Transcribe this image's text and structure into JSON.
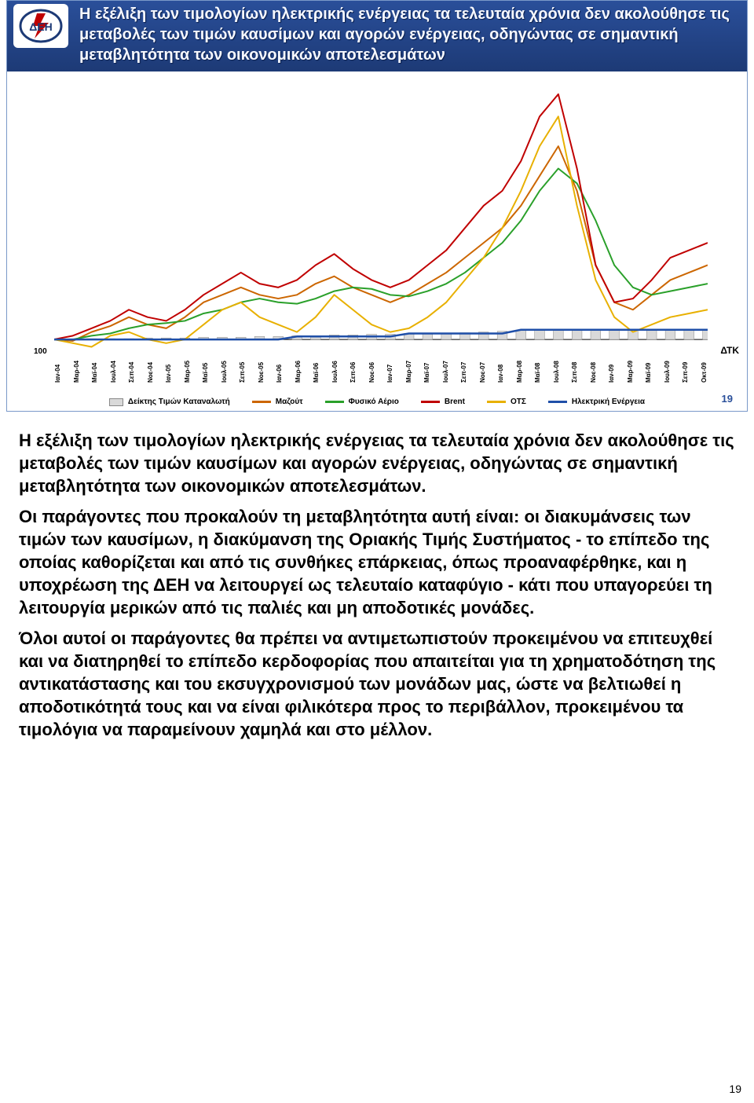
{
  "header": {
    "title": "Η εξέλιξη των τιμολογίων ηλεκτρικής ενέργειας τα τελευταία χρόνια δεν ακολούθησε τις μεταβολές των τιμών καυσίμων και αγορών ενέργειας, οδηγώντας σε σημαντική μεταβλητότητα των οικονομικών αποτελεσμάτων",
    "logo_text": "ΔΕΗ",
    "header_bg_top": "#2a4f9a",
    "header_bg_bottom": "#1d3a76",
    "title_color": "#f6f8ff",
    "title_fontsize": 20
  },
  "chart": {
    "type": "line",
    "background_color": "#ffffff",
    "y_baseline_label": "100",
    "y_label_right": "ΔΤΚ",
    "x_categories": [
      "Ιαν-04",
      "Μαρ-04",
      "Μαϊ-04",
      "Ιουλ-04",
      "Σεπ-04",
      "Νοε-04",
      "Ιαν-05",
      "Μαρ-05",
      "Μαϊ-05",
      "Ιουλ-05",
      "Σεπ-05",
      "Νοε-05",
      "Ιαν-06",
      "Μαρ-06",
      "Μαϊ-06",
      "Ιουλ-06",
      "Σεπ-06",
      "Νοε-06",
      "Ιαν-07",
      "Μαρ-07",
      "Μαϊ-07",
      "Ιουλ-07",
      "Σεπ-07",
      "Νοε-07",
      "Ιαν-08",
      "Μαρ-08",
      "Μαϊ-08",
      "Ιουλ-08",
      "Σεπ-08",
      "Νοε-08",
      "Ιαν-09",
      "Μαρ-09",
      "Μαϊ-09",
      "Ιουλ-09",
      "Σεπ-09",
      "Οκτ-09"
    ],
    "series": [
      {
        "name": "Δείκτης Τιμών Καταναλωτή",
        "kind": "bar",
        "color": "#d9d9d9",
        "border": "#888888",
        "values": [
          100,
          100,
          101,
          101,
          101,
          102,
          102,
          102,
          103,
          103,
          103,
          104,
          104,
          105,
          105,
          106,
          106,
          107,
          107,
          108,
          108,
          108,
          109,
          110,
          111,
          112,
          113,
          114,
          114,
          114,
          113,
          113,
          113,
          113,
          113,
          113
        ]
      },
      {
        "name": "Μαζούτ",
        "kind": "line",
        "color": "#cc6600",
        "width": 2,
        "values": [
          100,
          98,
          110,
          118,
          130,
          120,
          115,
          130,
          150,
          160,
          170,
          160,
          155,
          160,
          175,
          185,
          170,
          160,
          150,
          160,
          175,
          190,
          210,
          230,
          250,
          280,
          320,
          360,
          300,
          200,
          150,
          140,
          160,
          180,
          190,
          200
        ]
      },
      {
        "name": "Φυσικό Αέριο",
        "kind": "line",
        "color": "#2aa02a",
        "width": 2,
        "values": [
          100,
          100,
          105,
          108,
          115,
          120,
          122,
          125,
          135,
          140,
          150,
          155,
          150,
          148,
          155,
          165,
          170,
          168,
          160,
          158,
          165,
          175,
          190,
          210,
          230,
          260,
          300,
          330,
          310,
          260,
          200,
          170,
          160,
          165,
          170,
          175
        ]
      },
      {
        "name": "Brent",
        "kind": "line",
        "color": "#c00000",
        "width": 2,
        "values": [
          100,
          105,
          115,
          125,
          140,
          130,
          125,
          140,
          160,
          175,
          190,
          175,
          170,
          180,
          200,
          215,
          195,
          180,
          170,
          180,
          200,
          220,
          250,
          280,
          300,
          340,
          400,
          430,
          330,
          200,
          150,
          155,
          180,
          210,
          220,
          230
        ]
      },
      {
        "name": "ΟΤΣ",
        "kind": "line",
        "color": "#e8b000",
        "width": 2,
        "values": [
          100,
          95,
          90,
          105,
          110,
          100,
          95,
          100,
          120,
          140,
          150,
          130,
          120,
          110,
          130,
          160,
          140,
          120,
          110,
          115,
          130,
          150,
          180,
          210,
          250,
          300,
          360,
          400,
          280,
          180,
          130,
          110,
          120,
          130,
          135,
          140
        ]
      },
      {
        "name": "Ηλεκτρική Ενέργεια",
        "kind": "line",
        "color": "#1f4fa8",
        "width": 2.5,
        "values": [
          100,
          100,
          100,
          100,
          100,
          100,
          100,
          100,
          100,
          100,
          100,
          100,
          100,
          104,
          104,
          104,
          104,
          104,
          104,
          108,
          108,
          108,
          108,
          108,
          108,
          113,
          113,
          113,
          113,
          113,
          113,
          113,
          113,
          113,
          113,
          113
        ]
      }
    ],
    "ylim": [
      80,
      450
    ],
    "legend_labels": {
      "dtk": "Δείκτης Τιμών Καταναλωτή",
      "mazout": "Μαζούτ",
      "gas": "Φυσικό Αέριο",
      "brent": "Brent",
      "ots": "ΟΤΣ",
      "electric": "Ηλεκτρική Ενέργεια"
    },
    "legend_colors": {
      "mazout": "#cc6600",
      "gas": "#2aa02a",
      "brent": "#c00000",
      "ots": "#e8b000",
      "electric": "#1f4fa8"
    },
    "slide_number": "19"
  },
  "body": {
    "p1": "Η εξέλιξη των τιμολογίων ηλεκτρικής ενέργειας τα τελευταία χρόνια δεν ακολούθησε τις μεταβολές των τιμών καυσίμων και αγορών ενέργειας, οδηγώντας σε σημαντική μεταβλητότητα των οικονομικών αποτελεσμάτων.",
    "p2": "Οι παράγοντες που προκαλούν τη μεταβλητότητα αυτή είναι: οι διακυμάνσεις των τιμών των καυσίμων, η διακύμανση της Οριακής Τιμής Συστήματος - το επίπεδο της οποίας καθορίζεται και από τις συνθήκες επάρκειας, όπως προαναφέρθηκε,  και η υποχρέωση της ΔΕΗ να λειτουργεί ως τελευταίο καταφύγιο -  κάτι που υπαγορεύει τη λειτουργία μερικών από τις παλιές και μη αποδοτικές μονάδες.",
    "p3": "Όλοι αυτοί οι παράγοντες θα πρέπει να αντιμετωπιστούν προκειμένου να επιτευχθεί και να διατηρηθεί το επίπεδο κερδοφορίας που απαιτείται για τη χρηματοδότηση της αντικατάστασης και του εκσυγχρονισμού των μονάδων μας, ώστε να βελτιωθεί η αποδοτικότητά τους και να είναι φιλικότερα προς το περιβάλλον,  προκειμένου τα τιμολόγια να παραμείνουν χαμηλά και στο μέλλον."
  },
  "page_number": "19"
}
